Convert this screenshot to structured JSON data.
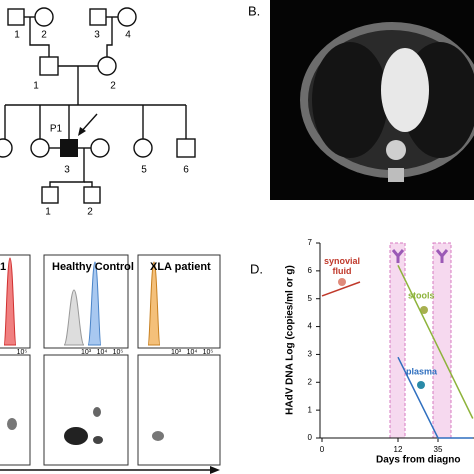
{
  "pedigree": {
    "generations": [
      {
        "members": [
          "1",
          "2",
          "3",
          "4"
        ]
      },
      {
        "members": [
          "1",
          "2"
        ]
      },
      {
        "members": [
          "3",
          "5",
          "6"
        ]
      },
      {
        "members": [
          "1",
          "2"
        ]
      }
    ],
    "proband": "P1"
  },
  "panel_b": {
    "label": "B."
  },
  "panel_c": {
    "titles": [
      "1",
      "Healthy Control",
      "XLA patient"
    ],
    "hist_ticks": [
      [
        "10⁵"
      ],
      [
        "10³",
        "10⁴",
        "10⁵"
      ],
      [
        "10³",
        "10⁴",
        "10⁵"
      ]
    ]
  },
  "panel_d": {
    "label": "D.",
    "chart": {
      "type": "line",
      "ylabel": "HAdV DNA Log (copies/ml or g)",
      "xlabel": "Days from diagno",
      "xticks": [
        0,
        12,
        35
      ],
      "ylim": [
        0,
        7
      ],
      "yticks": [
        0,
        1,
        2,
        3,
        4,
        5,
        6,
        7
      ],
      "series": [
        {
          "name": "synovial fluid",
          "color": "#c0392b",
          "x": [
            0,
            6
          ],
          "values": [
            5.1,
            5.6
          ]
        },
        {
          "name": "stools",
          "color": "#8db33a",
          "x": [
            12,
            55
          ],
          "values": [
            6.2,
            0.7
          ]
        },
        {
          "name": "plasma",
          "color": "#2f6fbf",
          "x": [
            12,
            35,
            55
          ],
          "values": [
            2.9,
            0,
            0
          ]
        }
      ]
    }
  }
}
